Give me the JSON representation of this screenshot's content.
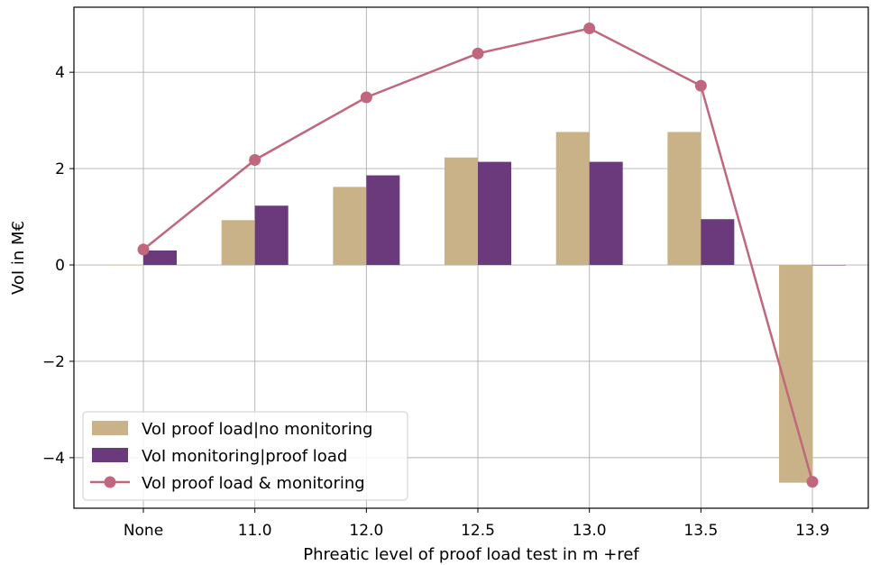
{
  "chart_data": {
    "type": "bar",
    "categories": [
      "None",
      "11.0",
      "12.0",
      "12.5",
      "13.0",
      "13.5",
      "13.9"
    ],
    "xlabel": "Phreatic level of proof load test in m +ref",
    "ylabel": "VoI in M€",
    "ylim": [
      -5.05,
      5.35
    ],
    "yticks": [
      -4,
      -2,
      0,
      2,
      4
    ],
    "ytick_labels": [
      "−4",
      "−2",
      "0",
      "2",
      "4"
    ],
    "grid": true,
    "legend_position": "lower-left",
    "series": [
      {
        "name": "VoI proof load|no monitoring",
        "kind": "bar",
        "color": "#c9b287",
        "values": [
          0.0,
          0.93,
          1.62,
          2.23,
          2.76,
          2.76,
          -4.52
        ]
      },
      {
        "name": "VoI monitoring|proof load",
        "kind": "bar",
        "color": "#6a3a7c",
        "values": [
          0.3,
          1.23,
          1.86,
          2.14,
          2.14,
          0.95,
          0.0
        ]
      },
      {
        "name": "VoI proof load & monitoring",
        "kind": "line",
        "color": "#c0677e",
        "values": [
          0.32,
          2.18,
          3.48,
          4.39,
          4.91,
          3.72,
          -4.5
        ]
      }
    ]
  }
}
